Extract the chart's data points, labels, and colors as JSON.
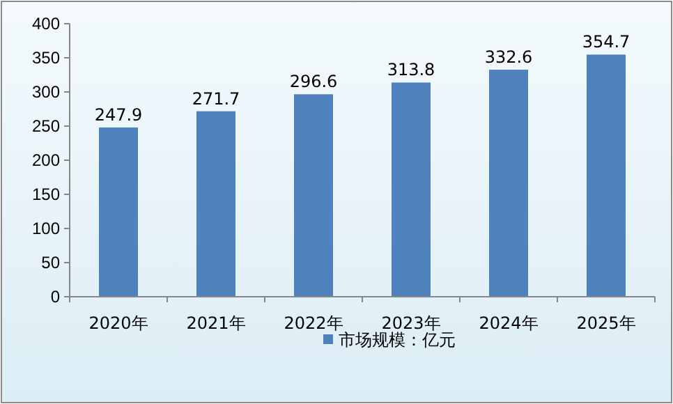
{
  "chart_data": {
    "type": "bar",
    "categories": [
      "2020年",
      "2021年",
      "2022年",
      "2023年",
      "2024年",
      "2025年"
    ],
    "series": [
      {
        "name": "市场规模：亿元",
        "color": "#4f81bd",
        "values": [
          247.9,
          271.7,
          296.6,
          313.8,
          332.6,
          354.7
        ]
      }
    ],
    "ylim": [
      0,
      400
    ],
    "yticks": [
      0,
      50,
      100,
      150,
      200,
      250,
      300,
      350,
      400
    ],
    "data_labels": true,
    "grid": false,
    "legend": "bottom"
  }
}
